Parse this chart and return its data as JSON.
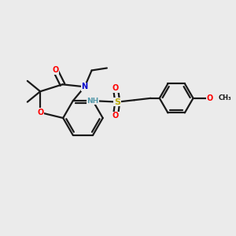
{
  "bg_color": "#ebebeb",
  "bond_color": "#1a1a1a",
  "atom_colors": {
    "O": "#ff0000",
    "N": "#0000cc",
    "S": "#bbaa00",
    "NH": "#5599aa",
    "OCH3": "#ff0000",
    "C": "#1a1a1a"
  },
  "figsize": [
    3.0,
    3.0
  ],
  "dpi": 100
}
